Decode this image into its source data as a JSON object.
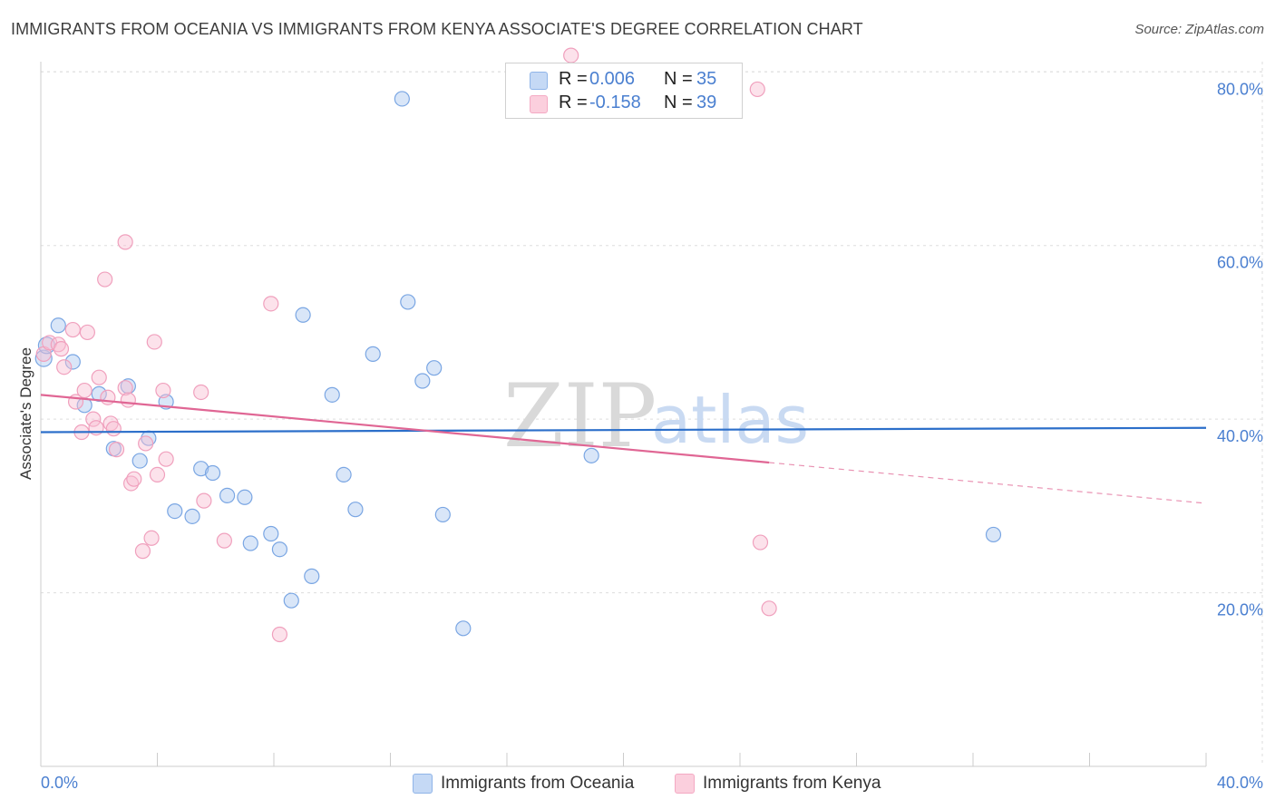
{
  "chart_data": {
    "type": "scatter",
    "title": "IMMIGRANTS FROM OCEANIA VS IMMIGRANTS FROM KENYA ASSOCIATE'S DEGREE CORRELATION CHART",
    "source": "Source: ZipAtlas.com",
    "xlabel": "",
    "ylabel": "Associate's Degree",
    "xlim": [
      0,
      40
    ],
    "ylim": [
      0,
      84
    ],
    "x_ticks": [
      {
        "value": 0,
        "label": "0.0%"
      },
      {
        "value": 40,
        "label": "40.0%"
      }
    ],
    "y_ticks": [
      {
        "value": 20,
        "label": "20.0%"
      },
      {
        "value": 40,
        "label": "40.0%"
      },
      {
        "value": 60,
        "label": "60.0%"
      },
      {
        "value": 80,
        "label": "80.0%"
      }
    ],
    "grid": true,
    "legend_position": "top-center",
    "watermark": {
      "zip": "ZIP",
      "atlas": "atlas"
    },
    "series": [
      {
        "name": "Immigrants from Oceania",
        "color": "#8fb4e8",
        "line_color": "#2c6fca",
        "R_label": "R =",
        "R": "0.006",
        "N_label": "N =",
        "N": "35",
        "trend": {
          "x0": 0,
          "y0": 38.5,
          "x1": 40,
          "y1": 39.0
        },
        "points": [
          [
            0.1,
            47.0
          ],
          [
            0.2,
            48.5
          ],
          [
            0.6,
            50.8
          ],
          [
            1.1,
            46.6
          ],
          [
            1.5,
            41.6
          ],
          [
            2.0,
            42.9
          ],
          [
            2.5,
            36.6
          ],
          [
            3.0,
            43.8
          ],
          [
            3.4,
            35.2
          ],
          [
            3.7,
            37.8
          ],
          [
            4.3,
            42.0
          ],
          [
            4.6,
            29.4
          ],
          [
            5.2,
            28.8
          ],
          [
            5.5,
            34.3
          ],
          [
            5.9,
            33.8
          ],
          [
            6.4,
            31.2
          ],
          [
            7.0,
            31.0
          ],
          [
            7.2,
            25.7
          ],
          [
            7.9,
            26.8
          ],
          [
            8.2,
            25.0
          ],
          [
            8.6,
            19.1
          ],
          [
            9.0,
            52.0
          ],
          [
            9.3,
            21.9
          ],
          [
            10.0,
            42.8
          ],
          [
            10.4,
            33.6
          ],
          [
            10.8,
            29.6
          ],
          [
            11.4,
            47.5
          ],
          [
            12.4,
            76.9
          ],
          [
            12.6,
            53.5
          ],
          [
            13.1,
            44.4
          ],
          [
            13.5,
            45.9
          ],
          [
            13.8,
            29.0
          ],
          [
            14.5,
            15.9
          ],
          [
            18.9,
            35.8
          ],
          [
            32.7,
            26.7
          ]
        ]
      },
      {
        "name": "Immigrants from Kenya",
        "color": "#f4a9c3",
        "line_color": "#e06694",
        "R_label": "R =",
        "R": "-0.158",
        "N_label": "N =",
        "N": "39",
        "trend": {
          "x0": 0,
          "y0": 42.8,
          "x1": 25.0,
          "y1": 35.0
        },
        "trend_dashed_to": {
          "x": 40,
          "y": 30.3
        },
        "points": [
          [
            0.1,
            47.5
          ],
          [
            0.3,
            48.8
          ],
          [
            0.6,
            48.6
          ],
          [
            0.7,
            48.1
          ],
          [
            0.8,
            46.0
          ],
          [
            1.1,
            50.3
          ],
          [
            1.2,
            42.0
          ],
          [
            1.4,
            38.5
          ],
          [
            1.5,
            43.3
          ],
          [
            1.6,
            50.0
          ],
          [
            1.8,
            40.0
          ],
          [
            1.9,
            39.0
          ],
          [
            2.0,
            44.8
          ],
          [
            2.2,
            56.1
          ],
          [
            2.3,
            42.5
          ],
          [
            2.4,
            39.5
          ],
          [
            2.5,
            38.9
          ],
          [
            2.6,
            36.5
          ],
          [
            2.9,
            43.6
          ],
          [
            2.9,
            60.4
          ],
          [
            3.0,
            42.2
          ],
          [
            3.1,
            32.6
          ],
          [
            3.2,
            33.1
          ],
          [
            3.5,
            24.8
          ],
          [
            3.6,
            37.2
          ],
          [
            3.8,
            26.3
          ],
          [
            3.9,
            48.9
          ],
          [
            4.0,
            33.6
          ],
          [
            4.2,
            43.3
          ],
          [
            4.3,
            35.4
          ],
          [
            5.5,
            43.1
          ],
          [
            5.6,
            30.6
          ],
          [
            6.3,
            26.0
          ],
          [
            7.9,
            53.3
          ],
          [
            8.2,
            15.2
          ],
          [
            18.2,
            81.9
          ],
          [
            24.6,
            78.0
          ],
          [
            24.7,
            25.8
          ],
          [
            25.0,
            18.2
          ]
        ]
      }
    ]
  }
}
